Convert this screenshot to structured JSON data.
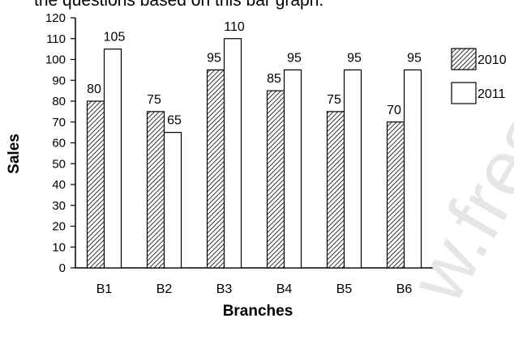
{
  "header_fragment": "the questions based on this bar graph.",
  "watermark_text": "w.fresh",
  "colors": {
    "series_2010_pattern": "#000000",
    "series_2011_fill": "#ffffff",
    "axis": "#000000",
    "watermark": "#e6e6e6"
  },
  "chart_data": {
    "type": "bar",
    "title": "",
    "xlabel": "Branches",
    "ylabel": "Sales",
    "ylim": [
      0,
      120
    ],
    "ytick_step": 10,
    "grid": false,
    "legend_placement": "right",
    "categories": [
      "B1",
      "B2",
      "B3",
      "B4",
      "B5",
      "B6"
    ],
    "series": [
      {
        "name": "2010",
        "fill": "hatched",
        "values": [
          80,
          75,
          95,
          85,
          75,
          70
        ]
      },
      {
        "name": "2011",
        "fill": "white",
        "values": [
          105,
          65,
          110,
          95,
          95,
          95
        ]
      }
    ]
  }
}
